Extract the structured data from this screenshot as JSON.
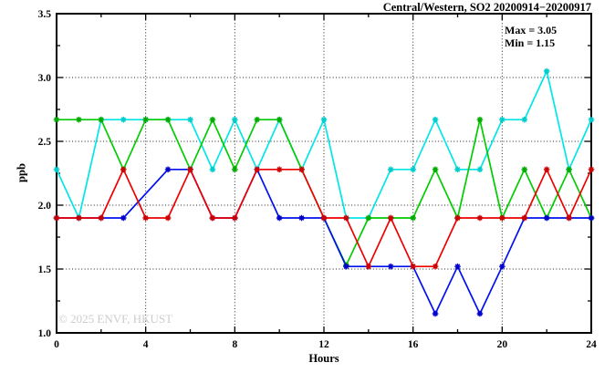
{
  "page": {
    "background": "#ffffff"
  },
  "chart_data": {
    "type": "line",
    "title": "Central/Western, SO2 20200914−20200917",
    "xlabel": "Hours",
    "ylabel": "ppb",
    "annotations": [
      "Max = 3.05",
      "Min = 1.15"
    ],
    "max": 3.05,
    "min": 1.15,
    "watermark": "© 2025  ENVF, HKUST",
    "xlim": [
      0,
      24
    ],
    "ylim": [
      1.0,
      3.5
    ],
    "x_tick_values": [
      0,
      4,
      8,
      12,
      16,
      20,
      24
    ],
    "x_tick_labels": [
      "0",
      "4",
      "8",
      "12",
      "16",
      "20",
      "24"
    ],
    "x_minor_ticks": [
      2,
      6,
      10,
      14,
      18,
      22
    ],
    "y_tick_values": [
      1.0,
      1.5,
      2.0,
      2.5,
      3.0,
      3.5
    ],
    "y_tick_labels": [
      "1.0",
      "1.5",
      "2.0",
      "2.5",
      "3.0",
      "3.5"
    ],
    "y_minor_ticks": [
      1.25,
      1.75,
      2.25,
      2.75,
      3.25
    ],
    "x_gridlines": [
      4,
      8,
      12,
      16,
      20
    ],
    "y_gridlines": [
      1.5,
      2.0,
      2.5,
      3.0
    ],
    "grid": "dotted",
    "legend": "none",
    "x": [
      0,
      1,
      2,
      3,
      4,
      5,
      6,
      7,
      8,
      9,
      10,
      11,
      12,
      13,
      14,
      15,
      16,
      17,
      18,
      19,
      20,
      21,
      22,
      23,
      24
    ],
    "series": [
      {
        "name": "series-cyan",
        "color": "#00e6e6",
        "marker_color": "#00cccc",
        "values": [
          2.28,
          1.9,
          2.67,
          2.67,
          2.67,
          2.67,
          2.67,
          2.28,
          2.67,
          2.28,
          2.67,
          2.28,
          2.67,
          1.9,
          1.9,
          2.28,
          2.28,
          2.67,
          2.28,
          2.28,
          2.67,
          2.67,
          3.05,
          2.28,
          2.67
        ]
      },
      {
        "name": "series-green",
        "color": "#00cc00",
        "marker_color": "#00aa00",
        "values": [
          2.67,
          2.67,
          2.67,
          2.28,
          2.67,
          2.67,
          2.28,
          2.67,
          2.28,
          2.67,
          2.67,
          2.28,
          1.9,
          1.53,
          1.9,
          1.9,
          1.9,
          2.28,
          1.9,
          2.67,
          1.9,
          2.28,
          1.9,
          2.28,
          1.9
        ]
      },
      {
        "name": "series-blue",
        "color": "#0010ee",
        "marker_color": "#0000cc",
        "values": [
          1.9,
          1.9,
          1.9,
          1.9,
          null,
          2.28,
          2.28,
          1.9,
          1.9,
          2.28,
          1.9,
          1.9,
          1.9,
          1.52,
          1.52,
          1.52,
          1.52,
          1.15,
          1.52,
          1.15,
          1.52,
          1.9,
          1.9,
          1.9,
          1.9
        ]
      },
      {
        "name": "series-red",
        "color": "#ee0000",
        "marker_color": "#cc0000",
        "values": [
          1.9,
          1.9,
          1.9,
          2.28,
          1.9,
          1.9,
          2.28,
          1.9,
          1.9,
          2.28,
          2.28,
          2.28,
          1.9,
          1.9,
          1.52,
          1.9,
          1.52,
          1.52,
          1.9,
          1.9,
          1.9,
          1.9,
          2.28,
          1.9,
          2.28
        ]
      }
    ],
    "frame_color": "#000000",
    "grid_color": "#222222",
    "tick_color": "#000000"
  }
}
